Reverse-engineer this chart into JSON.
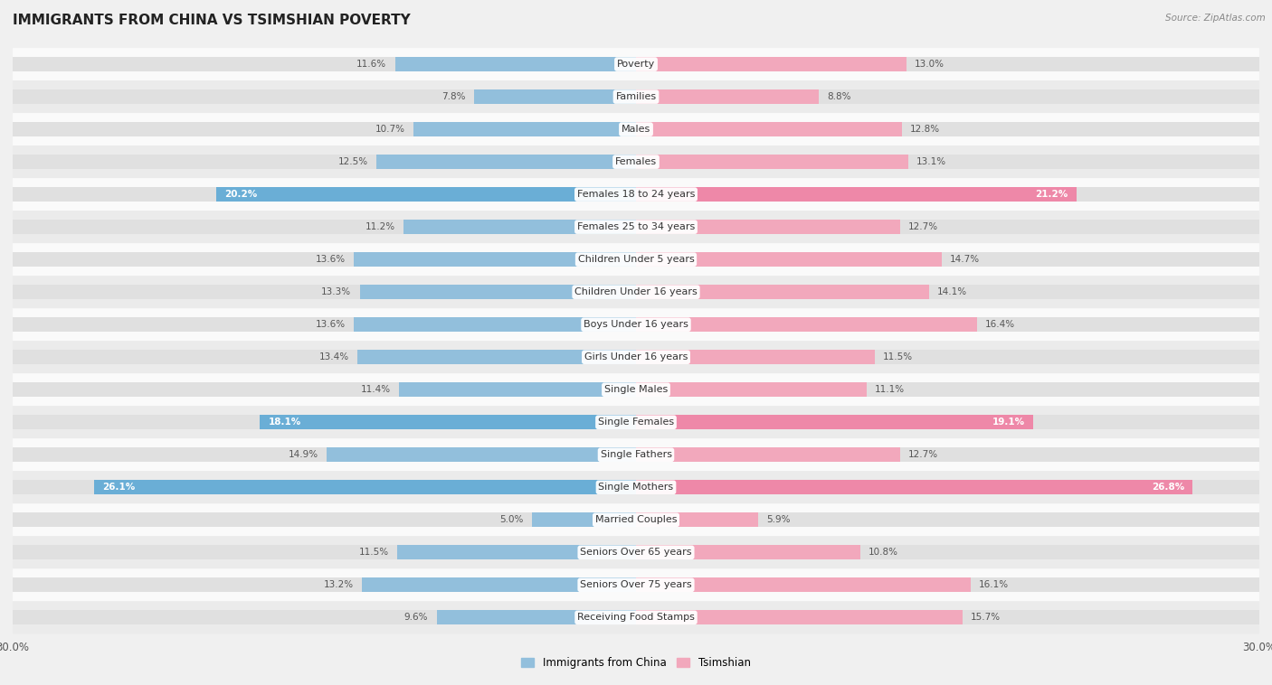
{
  "title": "IMMIGRANTS FROM CHINA VS TSIMSHIAN POVERTY",
  "source": "Source: ZipAtlas.com",
  "categories": [
    "Poverty",
    "Families",
    "Males",
    "Females",
    "Females 18 to 24 years",
    "Females 25 to 34 years",
    "Children Under 5 years",
    "Children Under 16 years",
    "Boys Under 16 years",
    "Girls Under 16 years",
    "Single Males",
    "Single Females",
    "Single Fathers",
    "Single Mothers",
    "Married Couples",
    "Seniors Over 65 years",
    "Seniors Over 75 years",
    "Receiving Food Stamps"
  ],
  "left_values": [
    11.6,
    7.8,
    10.7,
    12.5,
    20.2,
    11.2,
    13.6,
    13.3,
    13.6,
    13.4,
    11.4,
    18.1,
    14.9,
    26.1,
    5.0,
    11.5,
    13.2,
    9.6
  ],
  "right_values": [
    13.0,
    8.8,
    12.8,
    13.1,
    21.2,
    12.7,
    14.7,
    14.1,
    16.4,
    11.5,
    11.1,
    19.1,
    12.7,
    26.8,
    5.9,
    10.8,
    16.1,
    15.7
  ],
  "left_color_normal": "#92bfdc",
  "right_color_normal": "#f2a8bc",
  "left_color_highlight": "#6aaed6",
  "right_color_highlight": "#ee88a8",
  "highlight_rows": [
    4,
    11,
    13
  ],
  "max_value": 30.0,
  "left_label": "Immigrants from China",
  "right_label": "Tsimshian",
  "bg_color": "#f0f0f0",
  "row_color_even": "#fafafa",
  "row_color_odd": "#ebebeb",
  "bar_bg_color": "#e0e0e0",
  "title_fontsize": 11,
  "label_fontsize": 8,
  "value_fontsize": 7.5,
  "source_fontsize": 7.5,
  "legend_fontsize": 8.5
}
